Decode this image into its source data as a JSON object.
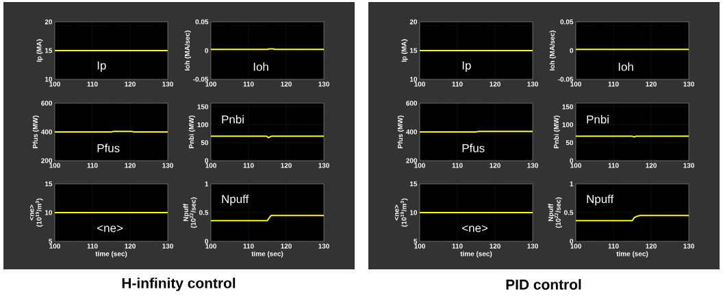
{
  "chart_data": [
    {
      "type": "line",
      "ylabel": "Ip (MA)",
      "xlim": [
        100,
        130
      ],
      "ylim": [
        10,
        20
      ],
      "xticks": [
        100,
        110,
        120,
        130
      ],
      "yticks": [
        10,
        15,
        20
      ],
      "grid": true,
      "series": [
        {
          "name": "Ip",
          "color": "#ffff00",
          "x": [
            100,
            115,
            130
          ],
          "values": [
            15,
            15,
            15
          ]
        }
      ]
    },
    {
      "type": "line",
      "ylabel": "Ioh (MA/sec)",
      "xlim": [
        100,
        130
      ],
      "ylim": [
        -0.05,
        0.05
      ],
      "xticks": [
        100,
        110,
        120,
        130
      ],
      "yticks": [
        -0.05,
        0,
        0.05
      ],
      "grid": true,
      "series": [
        {
          "name": "Ioh",
          "color": "#ffff00",
          "x": [
            100,
            115,
            115.5,
            116.5,
            117,
            130
          ],
          "values": [
            0.002,
            0.002,
            0.003,
            0.003,
            0.002,
            0.002
          ]
        }
      ]
    },
    {
      "type": "line",
      "ylabel": "Pfus (MW)",
      "xlim": [
        100,
        130
      ],
      "ylim": [
        200,
        600
      ],
      "xticks": [
        100,
        110,
        120,
        130
      ],
      "yticks": [
        200,
        400,
        600
      ],
      "grid": true,
      "series": [
        {
          "name": "Pfus",
          "color": "#ffff00",
          "x": [
            100,
            115,
            115.5,
            120.5,
            121,
            130
          ],
          "values": [
            400,
            400,
            403,
            403,
            400,
            400
          ]
        }
      ]
    },
    {
      "type": "line",
      "ylabel": "Pnbi (MW)",
      "xlim": [
        100,
        130
      ],
      "ylim": [
        0,
        160
      ],
      "xticks": [
        100,
        110,
        120,
        130
      ],
      "yticks": [
        0,
        50,
        100,
        150
      ],
      "grid": true,
      "series": [
        {
          "name": "Pnbi",
          "color": "#ffff00",
          "x": [
            100,
            114.8,
            115.3,
            116,
            130
          ],
          "values": [
            68,
            68,
            64,
            68,
            68
          ]
        }
      ]
    },
    {
      "type": "line",
      "xlabel": "time (sec)",
      "ylabel": "<ne> (10$^{19}$/m$^{3}$)",
      "xlim": [
        100,
        130
      ],
      "ylim": [
        5,
        15
      ],
      "xticks": [
        100,
        110,
        120,
        130
      ],
      "yticks": [
        5,
        10,
        15
      ],
      "grid": true,
      "series": [
        {
          "name": "<ne>",
          "color": "#ffff00",
          "x": [
            100,
            130
          ],
          "values": [
            10,
            10
          ]
        }
      ],
      "annotations": [
        "H-infinity control"
      ]
    },
    {
      "type": "line",
      "xlabel": "time (sec)",
      "ylabel": "Npuff (10$^{22}$/sec)",
      "xlim": [
        100,
        130
      ],
      "ylim": [
        0,
        1
      ],
      "xticks": [
        100,
        110,
        120,
        130
      ],
      "yticks": [
        0,
        0.5,
        1
      ],
      "grid": true,
      "series": [
        {
          "name": "Npuff",
          "color": "#ffff00",
          "x": [
            100,
            115,
            115.5,
            116,
            130
          ],
          "values": [
            0.36,
            0.36,
            0.41,
            0.45,
            0.45
          ]
        }
      ]
    },
    {
      "type": "line",
      "ylabel": "Ip (MA)",
      "xlim": [
        100,
        130
      ],
      "ylim": [
        10,
        20
      ],
      "xticks": [
        100,
        110,
        120,
        130
      ],
      "yticks": [
        10,
        15,
        20
      ],
      "grid": true,
      "series": [
        {
          "name": "Ip",
          "color": "#ffff00",
          "x": [
            100,
            130
          ],
          "values": [
            15,
            15
          ]
        }
      ]
    },
    {
      "type": "line",
      "ylabel": "Ioh (MA/sec)",
      "xlim": [
        100,
        130
      ],
      "ylim": [
        -0.05,
        0.05
      ],
      "xticks": [
        100,
        110,
        120,
        130
      ],
      "yticks": [
        -0.05,
        0,
        0.05
      ],
      "grid": true,
      "series": [
        {
          "name": "Ioh",
          "color": "#ffff00",
          "x": [
            100,
            130
          ],
          "values": [
            0.002,
            0.002
          ]
        }
      ]
    },
    {
      "type": "line",
      "ylabel": "Pfus (MW)",
      "xlim": [
        100,
        130
      ],
      "ylim": [
        200,
        600
      ],
      "xticks": [
        100,
        110,
        120,
        130
      ],
      "yticks": [
        200,
        400,
        600
      ],
      "grid": true,
      "series": [
        {
          "name": "Pfus",
          "color": "#ffff00",
          "x": [
            100,
            115,
            115.5,
            130
          ],
          "values": [
            400,
            400,
            403,
            403
          ]
        }
      ]
    },
    {
      "type": "line",
      "ylabel": "Pnbi (MW)",
      "xlim": [
        100,
        130
      ],
      "ylim": [
        0,
        160
      ],
      "xticks": [
        100,
        110,
        120,
        130
      ],
      "yticks": [
        0,
        50,
        100,
        150
      ],
      "grid": true,
      "series": [
        {
          "name": "Pnbi",
          "color": "#ffff00",
          "x": [
            100,
            115,
            115.5,
            116,
            130
          ],
          "values": [
            68,
            68,
            66,
            68,
            68
          ]
        }
      ]
    },
    {
      "type": "line",
      "xlabel": "time (sec)",
      "ylabel": "<ne> (10$^{19}$/m$^{3}$)",
      "xlim": [
        100,
        130
      ],
      "ylim": [
        5,
        15
      ],
      "xticks": [
        100,
        110,
        120,
        130
      ],
      "yticks": [
        5,
        10,
        15
      ],
      "grid": true,
      "series": [
        {
          "name": "<ne>",
          "color": "#ffff00",
          "x": [
            100,
            130
          ],
          "values": [
            10,
            10
          ]
        }
      ],
      "annotations": [
        "PID control"
      ]
    },
    {
      "type": "line",
      "xlabel": "time (sec)",
      "ylabel": "Npuff (10$^{22}$/sec)",
      "xlim": [
        100,
        130
      ],
      "ylim": [
        0,
        1
      ],
      "xticks": [
        100,
        110,
        120,
        130
      ],
      "yticks": [
        0,
        0.5,
        1
      ],
      "grid": true,
      "series": [
        {
          "name": "Npuff",
          "color": "#ffff00",
          "x": [
            100,
            115,
            115.5,
            116,
            117,
            130
          ],
          "values": [
            0.36,
            0.36,
            0.41,
            0.43,
            0.45,
            0.45
          ]
        }
      ]
    }
  ]
}
